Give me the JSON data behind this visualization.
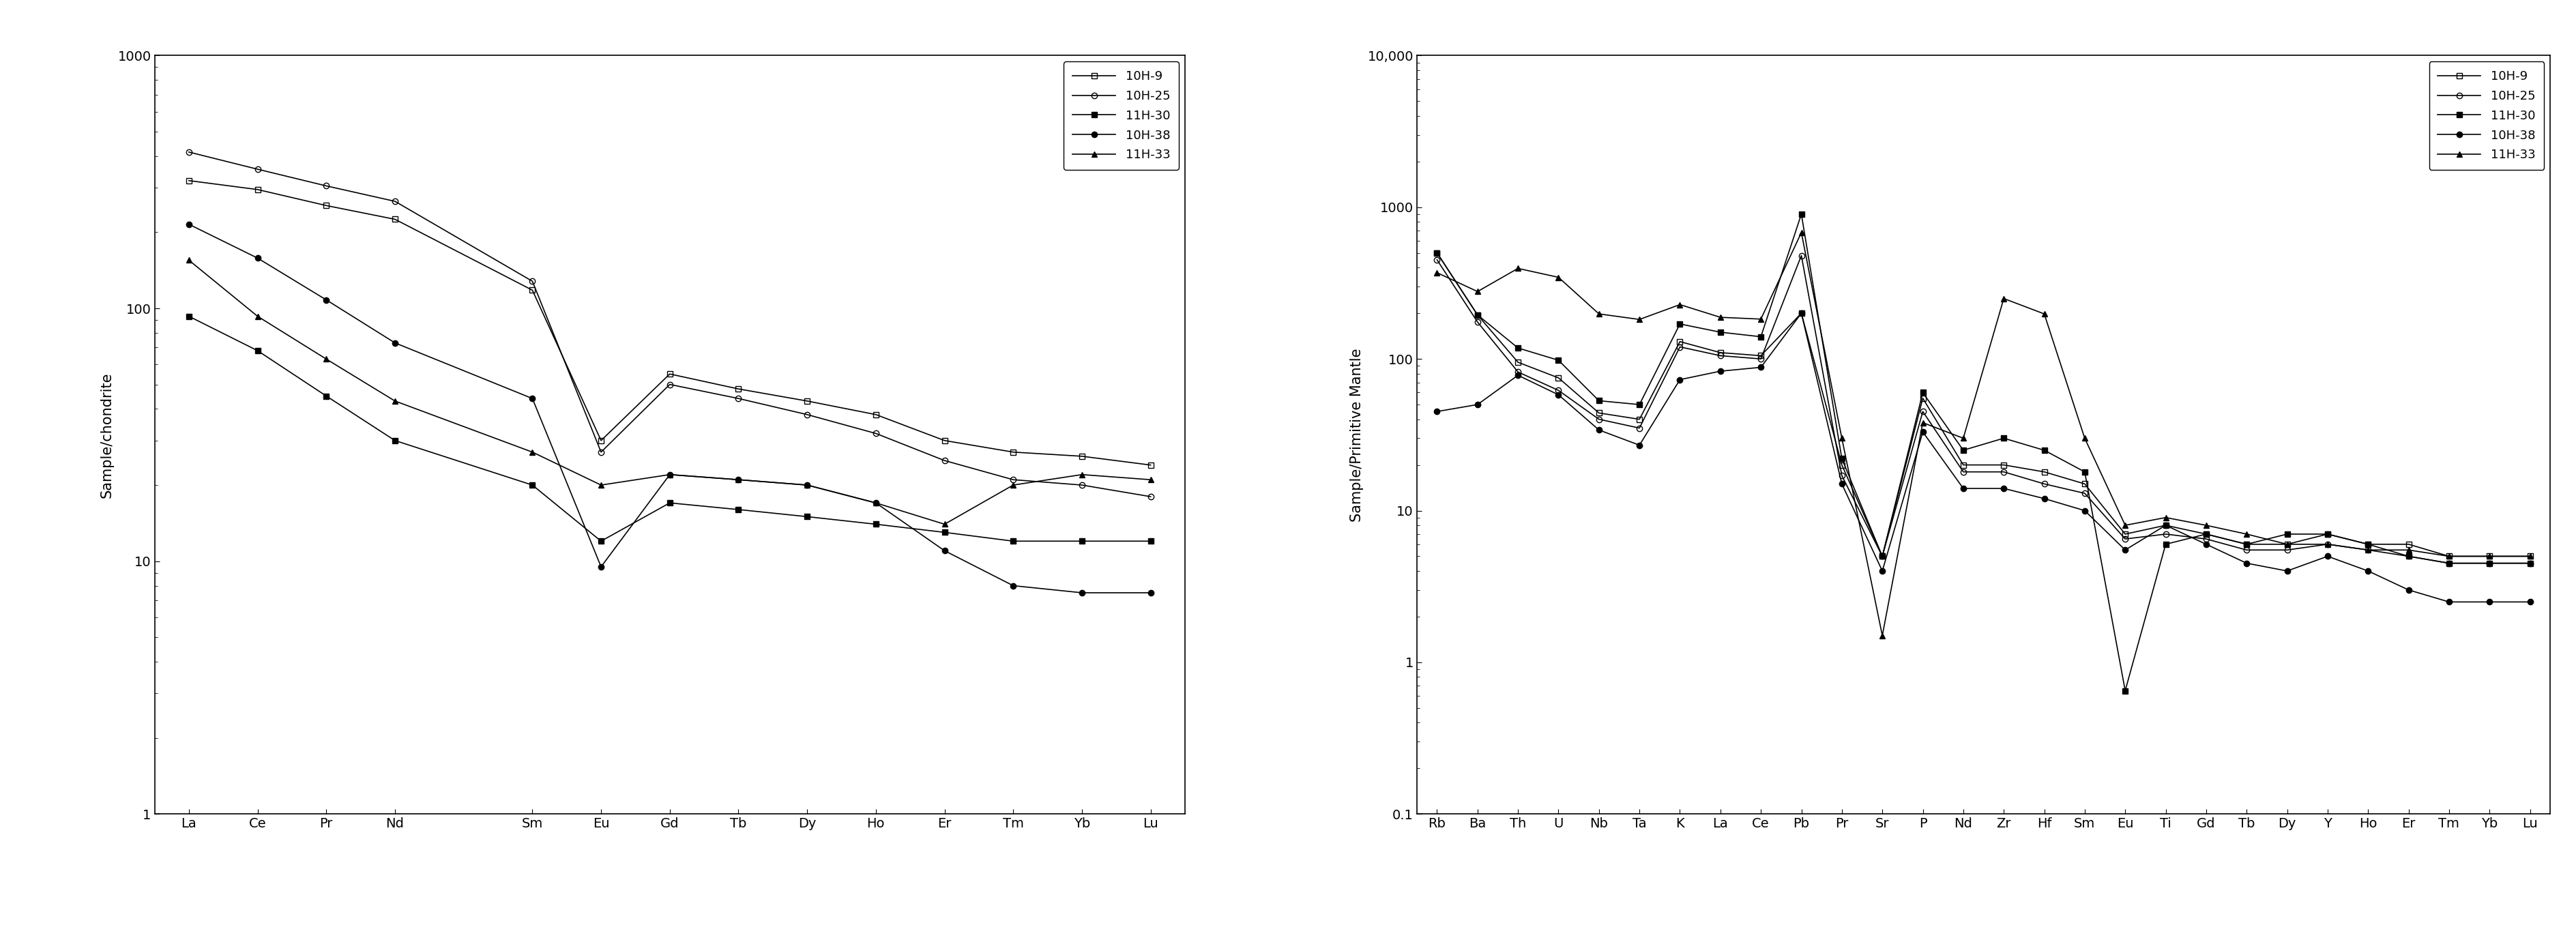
{
  "left_chart": {
    "ylabel": "Sample/chondrite",
    "ylim": [
      1,
      1000
    ],
    "yticks": [
      1,
      10,
      100,
      1000
    ],
    "ytick_labels": [
      "1",
      "10",
      "100",
      "1000"
    ],
    "elements": [
      "La",
      "Ce",
      "Pr",
      "Nd",
      "",
      "Sm",
      "Eu",
      "Gd",
      "Tb",
      "Dy",
      "Ho",
      "Er",
      "Tm",
      "Yb",
      "Lu"
    ],
    "element_indices": [
      0,
      1,
      2,
      3,
      5,
      6,
      7,
      8,
      9,
      10,
      11,
      12,
      13,
      14
    ],
    "series": {
      "10H-9": [
        320,
        295,
        255,
        225,
        118,
        30,
        55,
        48,
        43,
        38,
        30,
        27,
        26,
        24
      ],
      "10H-25": [
        415,
        355,
        305,
        265,
        128,
        27,
        50,
        44,
        38,
        32,
        25,
        21,
        20,
        18
      ],
      "11H-30": [
        93,
        68,
        45,
        30,
        20,
        12,
        17,
        16,
        15,
        14,
        13,
        12,
        12,
        12
      ],
      "10H-38": [
        215,
        158,
        108,
        73,
        44,
        9.5,
        22,
        21,
        20,
        17,
        11,
        8,
        7.5,
        7.5
      ],
      "11H-33": [
        155,
        93,
        63,
        43,
        27,
        20,
        22,
        21,
        20,
        17,
        14,
        20,
        22,
        21
      ]
    }
  },
  "right_chart": {
    "ylabel": "Sample/Primitive Mantle",
    "ylim": [
      0.1,
      10000
    ],
    "yticks": [
      0.1,
      1,
      10,
      100,
      1000,
      10000
    ],
    "ytick_labels": [
      "0.1",
      "1",
      "10",
      "100",
      "1000",
      "10,000"
    ],
    "elements": [
      "Rb",
      "Ba",
      "Th",
      "U",
      "Nb",
      "Ta",
      "K",
      "La",
      "Ce",
      "Pb",
      "Pr",
      "Sr",
      "P",
      "Nd",
      "Zr",
      "Hf",
      "Sm",
      "Eu",
      "Ti",
      "Gd",
      "Tb",
      "Dy",
      "Y",
      "Ho",
      "Er",
      "Tm",
      "Yb",
      "Lu"
    ],
    "series": {
      "10H-9": [
        500,
        195,
        95,
        75,
        44,
        40,
        130,
        110,
        105,
        200,
        20,
        5,
        55,
        20,
        20,
        18,
        15,
        7,
        8,
        7,
        6,
        6,
        7,
        6,
        6,
        5,
        5,
        5
      ],
      "10H-25": [
        450,
        175,
        82,
        62,
        40,
        35,
        120,
        105,
        100,
        480,
        17,
        5,
        45,
        18,
        18,
        15,
        13,
        6.5,
        7,
        6.5,
        5.5,
        5.5,
        6,
        5.5,
        5,
        4.5,
        4.5,
        4.5
      ],
      "11H-30": [
        500,
        195,
        118,
        98,
        53,
        50,
        170,
        150,
        140,
        900,
        22,
        5,
        60,
        25,
        30,
        25,
        18,
        0.65,
        6,
        7,
        6,
        7,
        7,
        6,
        5,
        4.5,
        4.5,
        4.5
      ],
      "10H-38": [
        45,
        50,
        78,
        58,
        34,
        27,
        73,
        83,
        88,
        200,
        15,
        4,
        33,
        14,
        14,
        12,
        10,
        5.5,
        8,
        6,
        4.5,
        4,
        5,
        4,
        3,
        2.5,
        2.5,
        2.5
      ],
      "11H-33": [
        370,
        278,
        395,
        345,
        198,
        182,
        228,
        188,
        183,
        680,
        30,
        1.5,
        38,
        30,
        250,
        198,
        30,
        8,
        9,
        8,
        7,
        6,
        6,
        5.5,
        5.5,
        5,
        5,
        5
      ]
    }
  },
  "series_styles": {
    "10H-9": {
      "marker": "s",
      "fillstyle": "none"
    },
    "10H-25": {
      "marker": "o",
      "fillstyle": "none"
    },
    "11H-30": {
      "marker": "s",
      "fillstyle": "full"
    },
    "10H-38": {
      "marker": "o",
      "fillstyle": "full"
    },
    "11H-33": {
      "marker": "^",
      "fillstyle": "full"
    }
  },
  "legend_labels": [
    "10H-9",
    "10H-25",
    "11H-30",
    "10H-38",
    "11H-33"
  ],
  "linewidth": 1.2,
  "markersize": 6,
  "fontsize_tick": 14,
  "fontsize_label": 15,
  "fontsize_legend": 13
}
